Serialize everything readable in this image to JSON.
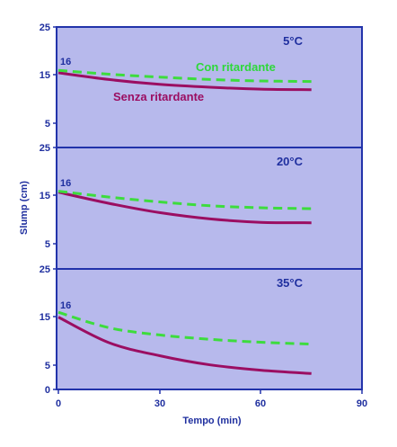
{
  "colors": {
    "panel_bg": "#b7b9ec",
    "border": "#2233aa",
    "text": "#1f2f9f",
    "con_ritardante": "#3ddc3d",
    "senza_ritardante": "#9b0e62"
  },
  "chart_data": {
    "type": "line",
    "xlabel": "Tempo (min)",
    "ylabel": "Slump (cm)",
    "xlim": [
      0,
      90
    ],
    "x_ticks": [
      "0",
      "30",
      "60",
      "90"
    ],
    "y_tick_labels": [
      "25",
      "15",
      "5"
    ],
    "bottom_zero_label": "0",
    "series_labels": {
      "con": "Con ritardante",
      "senza": "Senza ritardante"
    },
    "panels": [
      {
        "title": "5°C",
        "start_label": "16",
        "ylim": [
          0,
          25
        ],
        "con_ritardante": {
          "x": [
            0,
            15,
            30,
            45,
            60,
            75
          ],
          "y": [
            16,
            15.2,
            14.6,
            14.1,
            13.8,
            13.7
          ]
        },
        "senza_ritardante": {
          "x": [
            0,
            15,
            30,
            45,
            60,
            75
          ],
          "y": [
            15.5,
            14.1,
            13.1,
            12.5,
            12.1,
            12.0
          ]
        }
      },
      {
        "title": "20°C",
        "start_label": "16",
        "ylim": [
          0,
          25
        ],
        "con_ritardante": {
          "x": [
            0,
            15,
            30,
            45,
            60,
            75
          ],
          "y": [
            16,
            14.8,
            13.8,
            13.0,
            12.6,
            12.4
          ]
        },
        "senza_ritardante": {
          "x": [
            0,
            15,
            30,
            45,
            60,
            75
          ],
          "y": [
            15.8,
            13.5,
            11.6,
            10.3,
            9.6,
            9.5
          ]
        }
      },
      {
        "title": "35°C",
        "start_label": "16",
        "ylim": [
          0,
          25
        ],
        "con_ritardante": {
          "x": [
            0,
            15,
            30,
            45,
            60,
            75
          ],
          "y": [
            16,
            12.8,
            11.3,
            10.4,
            9.8,
            9.4
          ]
        },
        "senza_ritardante": {
          "x": [
            0,
            15,
            30,
            45,
            60,
            75
          ],
          "y": [
            15,
            9.7,
            7.0,
            5.1,
            4.0,
            3.3
          ]
        }
      }
    ]
  }
}
